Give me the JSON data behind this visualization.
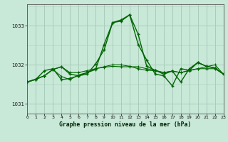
{
  "title": "Graphe pression niveau de la mer (hPa)",
  "bg_color": "#c8e8d8",
  "grid_color": "#aaccbb",
  "line_color": "#006600",
  "xlim": [
    0,
    23
  ],
  "ylim": [
    1030.75,
    1033.55
  ],
  "yticks": [
    1031,
    1032,
    1033
  ],
  "xticks": [
    0,
    1,
    2,
    3,
    4,
    5,
    6,
    7,
    8,
    9,
    10,
    11,
    12,
    13,
    14,
    15,
    16,
    17,
    18,
    19,
    20,
    21,
    22,
    23
  ],
  "series": [
    [
      1031.56,
      1031.63,
      1031.72,
      1031.88,
      1031.95,
      1031.76,
      1031.72,
      1031.8,
      1031.88,
      1032.52,
      1033.08,
      1033.15,
      1033.28,
      1032.78,
      1031.96,
      1031.86,
      1031.76,
      1031.84,
      1031.56,
      1031.9,
      1032.06,
      1031.96,
      1031.92,
      1031.76
    ],
    [
      1031.56,
      1031.63,
      1031.72,
      1031.88,
      1031.7,
      1031.62,
      1031.74,
      1031.8,
      1031.9,
      1031.94,
      1031.96,
      1031.95,
      1031.95,
      1031.95,
      1031.9,
      1031.86,
      1031.8,
      1031.84,
      1031.8,
      1031.85,
      1031.9,
      1031.9,
      1031.9,
      1031.76
    ],
    [
      1031.56,
      1031.63,
      1031.72,
      1031.88,
      1031.95,
      1031.8,
      1031.8,
      1031.85,
      1031.9,
      1031.95,
      1032.0,
      1032.0,
      1031.96,
      1031.9,
      1031.86,
      1031.85,
      1031.8,
      1031.84,
      1031.8,
      1031.86,
      1031.9,
      1031.95,
      1032.0,
      1031.76
    ],
    [
      1031.56,
      1031.63,
      1031.85,
      1031.9,
      1031.62,
      1031.65,
      1031.72,
      1031.76,
      1032.02,
      1032.38,
      1033.08,
      1033.12,
      1033.28,
      1032.52,
      1032.12,
      1031.76,
      1031.72,
      1031.46,
      1031.9,
      1031.86,
      1032.06,
      1031.96,
      1031.92,
      1031.76
    ]
  ]
}
